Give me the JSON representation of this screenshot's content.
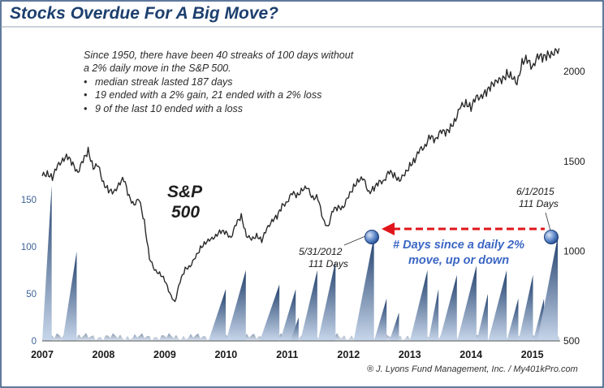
{
  "title": "Stocks Overdue For A Big Move?",
  "notes": {
    "intro_line1": "Since 1950, there have been 40 streaks of 100 days without",
    "intro_line2": "a 2% daily move in the S&P 500.",
    "bullets": [
      "median streak lasted 187 days",
      "19 ended with a 2% gain, 21 ended with a 2% loss",
      "9 of the last 10 ended with a loss"
    ],
    "bullet_char": "•"
  },
  "series_label": {
    "line1": "S&P",
    "line2": "500"
  },
  "callouts": {
    "a": {
      "date": "5/31/2012",
      "days": "111 Days"
    },
    "b": {
      "date": "6/1/2015",
      "days": "111 Days"
    }
  },
  "annotation": {
    "line1": "# Days since a daily 2%",
    "line2": "move, up or down"
  },
  "credit": "® J. Lyons Fund Management, Inc. / My401kPro.com",
  "colors": {
    "title": "#1c3f6e",
    "index_line": "#2a2a2a",
    "streak_fill_dark": "#1f3e6b",
    "streak_fill_light": "#c7d6ea",
    "left_axis_text": "#3c6296",
    "marker": "#2f5ea8",
    "arrow": "#e0151b",
    "annotation_text": "#3b66c4",
    "border": "#2a4d7a"
  },
  "chart_data": {
    "type": "line",
    "x_tick_labels": [
      "2007",
      "2008",
      "2009",
      "2010",
      "2011",
      "2012",
      "2013",
      "2014",
      "2015"
    ],
    "xlim": [
      "2007-01-01",
      "2015-06-15"
    ],
    "right_axis": {
      "ylim": [
        500,
        2150
      ],
      "ticks": [
        500,
        1000,
        1500,
        2000
      ],
      "ticklabels": [
        "500",
        "1000",
        "1500",
        "2000"
      ]
    },
    "left_axis": {
      "ylim": [
        0,
        180
      ],
      "ticks": [
        0,
        50,
        100,
        150
      ],
      "ticklabels": [
        "0",
        "50",
        "100",
        "150"
      ]
    },
    "legend": "none",
    "grid": false,
    "series": [
      {
        "name": "S&P 500",
        "axis": "right",
        "x": [
          "2007-01",
          "2007-02",
          "2007-03",
          "2007-04",
          "2007-05",
          "2007-06",
          "2007-07",
          "2007-08",
          "2007-09",
          "2007-10",
          "2007-11",
          "2007-12",
          "2008-01",
          "2008-02",
          "2008-03",
          "2008-04",
          "2008-05",
          "2008-06",
          "2008-07",
          "2008-08",
          "2008-09",
          "2008-10",
          "2008-11",
          "2008-12",
          "2009-01",
          "2009-02",
          "2009-03",
          "2009-04",
          "2009-05",
          "2009-06",
          "2009-07",
          "2009-08",
          "2009-09",
          "2009-10",
          "2009-11",
          "2009-12",
          "2010-01",
          "2010-02",
          "2010-03",
          "2010-04",
          "2010-05",
          "2010-06",
          "2010-07",
          "2010-08",
          "2010-09",
          "2010-10",
          "2010-11",
          "2010-12",
          "2011-01",
          "2011-02",
          "2011-03",
          "2011-04",
          "2011-05",
          "2011-06",
          "2011-07",
          "2011-08",
          "2011-09",
          "2011-10",
          "2011-11",
          "2011-12",
          "2012-01",
          "2012-02",
          "2012-03",
          "2012-04",
          "2012-05",
          "2012-06",
          "2012-07",
          "2012-08",
          "2012-09",
          "2012-10",
          "2012-11",
          "2012-12",
          "2013-01",
          "2013-02",
          "2013-03",
          "2013-04",
          "2013-05",
          "2013-06",
          "2013-07",
          "2013-08",
          "2013-09",
          "2013-10",
          "2013-11",
          "2013-12",
          "2014-01",
          "2014-02",
          "2014-03",
          "2014-04",
          "2014-05",
          "2014-06",
          "2014-07",
          "2014-08",
          "2014-09",
          "2014-10",
          "2014-11",
          "2014-12",
          "2015-01",
          "2015-02",
          "2015-03",
          "2015-04",
          "2015-05",
          "2015-06"
        ],
        "values": [
          1418,
          1435,
          1410,
          1470,
          1515,
          1525,
          1480,
          1445,
          1500,
          1560,
          1470,
          1470,
          1380,
          1340,
          1320,
          1380,
          1400,
          1300,
          1265,
          1285,
          1165,
          965,
          890,
          880,
          840,
          760,
          720,
          830,
          900,
          920,
          960,
          1020,
          1050,
          1060,
          1090,
          1110,
          1100,
          1080,
          1150,
          1195,
          1090,
          1060,
          1090,
          1060,
          1120,
          1175,
          1190,
          1250,
          1280,
          1320,
          1310,
          1350,
          1345,
          1300,
          1300,
          1170,
          1140,
          1230,
          1240,
          1250,
          1300,
          1360,
          1400,
          1395,
          1330,
          1350,
          1380,
          1400,
          1440,
          1420,
          1400,
          1420,
          1480,
          1510,
          1560,
          1590,
          1640,
          1610,
          1680,
          1650,
          1690,
          1740,
          1800,
          1830,
          1800,
          1850,
          1870,
          1880,
          1920,
          1960,
          1940,
          1990,
          1980,
          1920,
          2060,
          2070,
          2010,
          2100,
          2070,
          2090,
          2110,
          2105
        ]
      },
      {
        "name": "# Days since a daily 2% move, up or down",
        "axis": "left",
        "type": "area",
        "peaks": [
          {
            "start": "2007-01-01",
            "end": "2007-02-27",
            "days": 165
          },
          {
            "start": "2007-05-01",
            "end": "2007-07-24",
            "days": 95
          },
          {
            "start": "2009-09-18",
            "end": "2009-12-30",
            "days": 55
          },
          {
            "start": "2010-01-01",
            "end": "2010-04-28",
            "days": 75
          },
          {
            "start": "2010-07-20",
            "end": "2010-11-15",
            "days": 60
          },
          {
            "start": "2010-11-19",
            "end": "2011-02-21",
            "days": 55
          },
          {
            "start": "2011-01-20",
            "end": "2011-03-08",
            "days": 25
          },
          {
            "start": "2011-03-18",
            "end": "2011-06-28",
            "days": 75
          },
          {
            "start": "2011-07-01",
            "end": "2011-10-15",
            "days": 85
          },
          {
            "start": "2012-02-01",
            "end": "2012-05-31",
            "days": 111
          },
          {
            "start": "2012-06-01",
            "end": "2012-08-15",
            "days": 45
          },
          {
            "start": "2012-09-01",
            "end": "2012-10-28",
            "days": 30
          },
          {
            "start": "2013-01-02",
            "end": "2013-04-15",
            "days": 75
          },
          {
            "start": "2013-04-20",
            "end": "2013-06-20",
            "days": 55
          },
          {
            "start": "2013-06-25",
            "end": "2013-10-08",
            "days": 70
          },
          {
            "start": "2013-10-10",
            "end": "2014-02-03",
            "days": 80
          },
          {
            "start": "2014-02-05",
            "end": "2014-04-10",
            "days": 50
          },
          {
            "start": "2014-04-12",
            "end": "2014-07-31",
            "days": 75
          },
          {
            "start": "2014-08-01",
            "end": "2014-10-09",
            "days": 45
          },
          {
            "start": "2014-10-10",
            "end": "2015-01-05",
            "days": 70
          },
          {
            "start": "2015-01-06",
            "end": "2015-03-10",
            "days": 45
          },
          {
            "start": "2015-02-01",
            "end": "2015-06-01",
            "days": 111
          }
        ]
      }
    ]
  }
}
